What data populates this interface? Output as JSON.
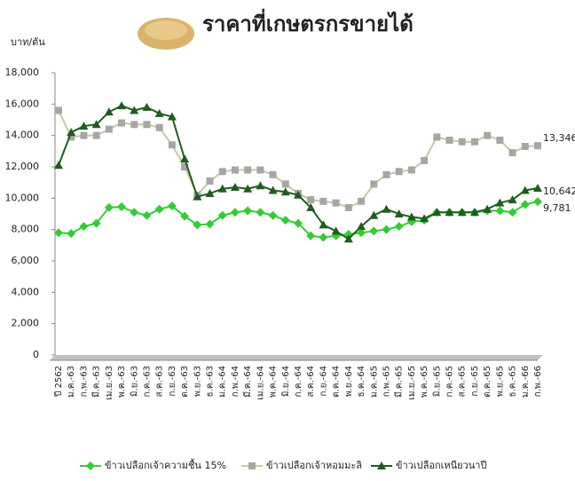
{
  "chart_data": {
    "type": "line",
    "title": "ราคาที่เกษตรกรขายได้",
    "y_label": "บาท/ตัน",
    "categories": [
      "ปี 2562",
      "ม.ค.-63",
      "ก.พ.-63",
      "มี.ค.-63",
      "เม.ย.-63",
      "พ.ค.-63",
      "มิ.ย.-63",
      "ก.ค.-63",
      "ส.ค.-63",
      "ก.ย.-63",
      "ต.ค.-63",
      "พ.ย.-63",
      "ธ.ค.-63",
      "ม.ค.-64",
      "ก.พ.-64",
      "มี.ค.-64",
      "เม.ย.-64",
      "พ.ค.-64",
      "มิ.ย.-64",
      "ก.ค.-64",
      "ส.ค.-64",
      "ก.ย.-64",
      "ต.ค.-64",
      "พ.ย.-64",
      "ธ.ค.-64",
      "ม.ค.-65",
      "ก.พ.-65",
      "มี.ค.-65",
      "เม.ย.-65",
      "พ.ค.-65",
      "มิ.ย.-65",
      "ก.ค.-65",
      "ส.ค.-65",
      "ก.ย.-65",
      "ต.ค.-65",
      "พ.ย.-65",
      "ธ.ค.-65",
      "ม.ค.-66",
      "ก.พ.-66"
    ],
    "series": [
      {
        "name": "ข้าวเปลือกเจ้าความชื้น 15%",
        "color": "#33cc33",
        "marker": "diamond",
        "values": [
          7800,
          7750,
          8200,
          8400,
          9400,
          9450,
          9100,
          8900,
          9300,
          9500,
          8850,
          8300,
          8350,
          8900,
          9100,
          9200,
          9100,
          8900,
          8600,
          8400,
          7600,
          7500,
          7600,
          7700,
          7800,
          7900,
          8000,
          8200,
          8500,
          8600,
          9100,
          9100,
          9100,
          9100,
          9200,
          9200,
          9100,
          9600,
          9781
        ],
        "value_labels": [
          null,
          null,
          null,
          null,
          null,
          null,
          null,
          null,
          null,
          null,
          null,
          null,
          null,
          null,
          null,
          null,
          null,
          null,
          null,
          null,
          null,
          null,
          null,
          null,
          null,
          null,
          null,
          null,
          null,
          null,
          null,
          null,
          null,
          null,
          null,
          null,
          null,
          null,
          "9,781"
        ]
      },
      {
        "name": "ข้าวเปลือกเจ้าหอมมะลิ",
        "color": "#a6a6a6",
        "line_color": "#c8c8a0",
        "marker": "square",
        "values": [
          15600,
          13900,
          14000,
          14000,
          14400,
          14800,
          14700,
          14700,
          14500,
          13400,
          12000,
          10200,
          11100,
          11700,
          11800,
          11800,
          11800,
          11500,
          10900,
          10300,
          9900,
          9800,
          9700,
          9400,
          9800,
          10900,
          11500,
          11700,
          11800,
          12400,
          13900,
          13700,
          13600,
          13600,
          14000,
          13700,
          12900,
          13300,
          13346
        ],
        "value_labels": [
          null,
          null,
          null,
          null,
          null,
          null,
          null,
          null,
          null,
          null,
          null,
          null,
          null,
          null,
          null,
          null,
          null,
          null,
          null,
          null,
          null,
          null,
          null,
          null,
          null,
          null,
          null,
          null,
          null,
          null,
          null,
          null,
          null,
          null,
          null,
          null,
          null,
          null,
          "13,346"
        ]
      },
      {
        "name": "ข้าวเปลือกเหนียวนาปี",
        "color": "#1f5c1f",
        "marker": "triangle",
        "values": [
          12100,
          14200,
          14600,
          14700,
          15500,
          15900,
          15600,
          15800,
          15400,
          15200,
          12500,
          10100,
          10300,
          10600,
          10700,
          10600,
          10800,
          10500,
          10400,
          10200,
          9400,
          8300,
          7900,
          7400,
          8200,
          8900,
          9300,
          9000,
          8800,
          8700,
          9100,
          9100,
          9100,
          9100,
          9300,
          9700,
          9900,
          10500,
          10642
        ],
        "value_labels": [
          null,
          null,
          null,
          null,
          null,
          null,
          null,
          null,
          null,
          null,
          null,
          null,
          null,
          null,
          null,
          null,
          null,
          null,
          null,
          null,
          null,
          null,
          null,
          null,
          null,
          null,
          null,
          null,
          null,
          null,
          null,
          null,
          null,
          null,
          null,
          null,
          null,
          null,
          "10,642"
        ]
      }
    ],
    "ylim": [
      0,
      18000
    ],
    "yticks": [
      0,
      {
        "value": 2000,
        "label": "2,000"
      },
      {
        "value": 4000,
        "label": "4,000"
      },
      {
        "value": 6000,
        "label": "6,000"
      },
      {
        "value": 8000,
        "label": "8,000"
      },
      {
        "value": 10000,
        "label": "10,000"
      },
      {
        "value": 12000,
        "label": "12,000"
      },
      {
        "value": 14000,
        "label": "14,000"
      },
      {
        "value": 16000,
        "label": "16,000"
      },
      {
        "value": 18000,
        "label": "18,000"
      }
    ],
    "grid": false,
    "legend": "bottom"
  }
}
